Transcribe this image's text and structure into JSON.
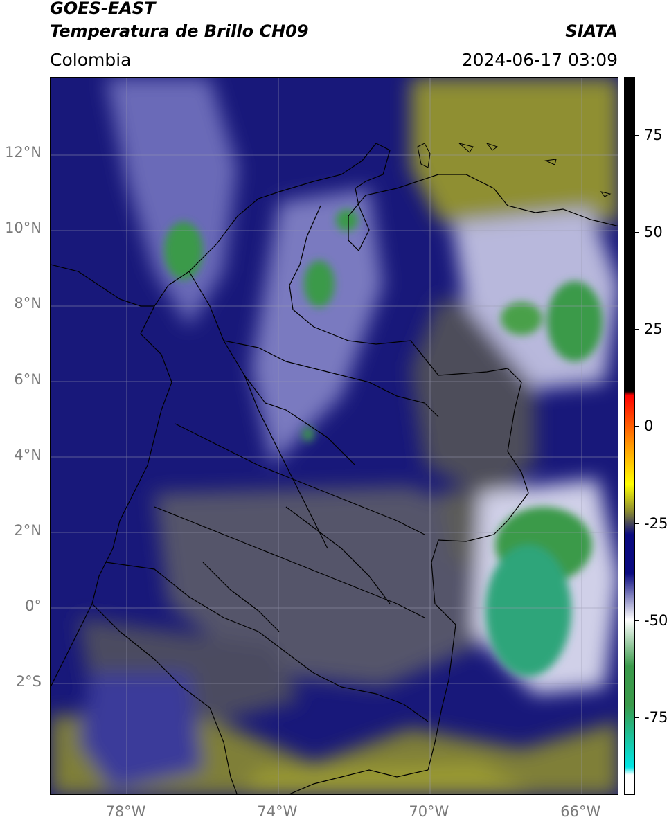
{
  "header": {
    "satellite": "GOES-EAST",
    "product": "Temperatura de Brillo CH09",
    "region": "Colombia",
    "source": "SIATA",
    "datetime": "2024-06-17 03:09"
  },
  "map": {
    "lat_labels": [
      {
        "label": "12°N",
        "lat": 12
      },
      {
        "label": "10°N",
        "lat": 10
      },
      {
        "label": "8°N",
        "lat": 8
      },
      {
        "label": "6°N",
        "lat": 6
      },
      {
        "label": "4°N",
        "lat": 4
      },
      {
        "label": "2°N",
        "lat": 2
      },
      {
        "label": "0°",
        "lat": 0
      },
      {
        "label": "2°S",
        "lat": -2
      }
    ],
    "lon_labels": [
      {
        "label": "78°W",
        "lon": -78
      },
      {
        "label": "74°W",
        "lon": -74
      },
      {
        "label": "70°W",
        "lon": -70
      },
      {
        "label": "66°W",
        "lon": -66
      }
    ],
    "lon_range": [
      -80,
      -65
    ],
    "lat_range": [
      -5,
      14
    ]
  },
  "colorbar": {
    "min": -95,
    "max": 90,
    "ticks": [
      {
        "label": "75",
        "value": 75
      },
      {
        "label": "50",
        "value": 50
      },
      {
        "label": "25",
        "value": 25
      },
      {
        "label": "0",
        "value": 0
      },
      {
        "label": "-25",
        "value": -25
      },
      {
        "label": "-50",
        "value": -50
      },
      {
        "label": "-75",
        "value": -75
      }
    ],
    "colors": {
      "black": "#000000",
      "red": "#ff0000",
      "orange": "#ff9900",
      "yellow": "#ffff00",
      "olive": "#8a8a30",
      "navy": "#0a0a80",
      "white": "#ffffff",
      "green": "#3a9a4a",
      "cyan": "#00e6e6"
    }
  }
}
